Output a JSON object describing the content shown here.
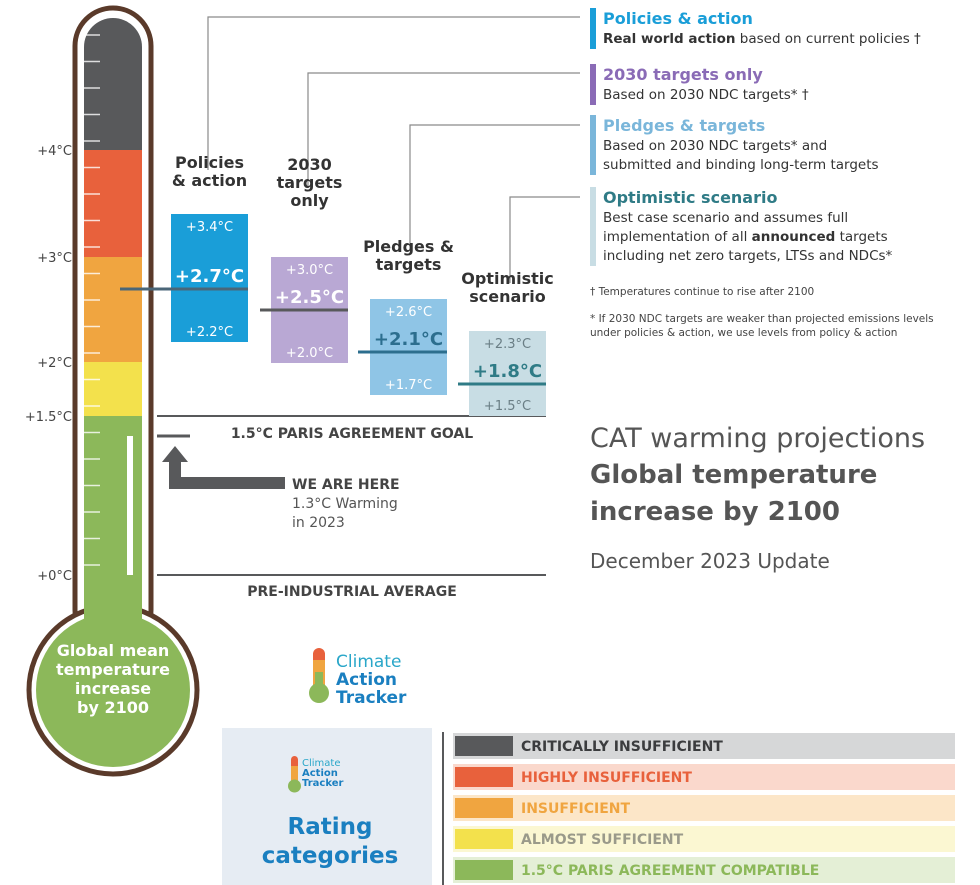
{
  "scale": {
    "ticks": [
      "+4°C",
      "+3°C",
      "+2°C",
      "+1.5°C",
      "+0°C"
    ]
  },
  "bulb": {
    "lines": [
      "Global mean",
      "temperature",
      "increase",
      "by 2100"
    ]
  },
  "scenarios": [
    {
      "label": [
        "Policies",
        "& action"
      ],
      "high": "+3.4°C",
      "mid": "+2.7°C",
      "low": "+2.2°C"
    },
    {
      "label": [
        "2030",
        "targets",
        "only"
      ],
      "high": "+3.0°C",
      "mid": "+2.5°C",
      "low": "+2.0°C"
    },
    {
      "label": [
        "Pledges &",
        "targets"
      ],
      "high": "+2.6°C",
      "mid": "+2.1°C",
      "low": "+1.7°C"
    },
    {
      "label": [
        "Optimistic",
        "scenario"
      ],
      "high": "+2.3°C",
      "mid": "+1.8°C",
      "low": "+1.5°C"
    }
  ],
  "legend": [
    {
      "title": "Policies & action",
      "lines": [
        [
          {
            "text": "Real world action",
            "bold": true
          },
          {
            "text": " based on current policies †",
            "bold": false
          }
        ]
      ]
    },
    {
      "title": "2030 targets only",
      "lines": [
        [
          {
            "text": "Based on 2030 NDC targets* †",
            "bold": false
          }
        ]
      ]
    },
    {
      "title": "Pledges & targets",
      "lines": [
        [
          {
            "text": "Based on 2030 NDC targets* and",
            "bold": false
          }
        ],
        [
          {
            "text": "submitted and binding long-term targets",
            "bold": false
          }
        ]
      ]
    },
    {
      "title": "Optimistic scenario",
      "lines": [
        [
          {
            "text": "Best case scenario and assumes full",
            "bold": false
          }
        ],
        [
          {
            "text": "implementation of all ",
            "bold": false
          },
          {
            "text": "announced",
            "bold": true
          },
          {
            "text": " targets",
            "bold": false
          }
        ],
        [
          {
            "text": "including net zero targets, LTSs and NDCs*",
            "bold": false
          }
        ]
      ]
    }
  ],
  "notes": [
    [
      "† Temperatures continue to rise after 2100"
    ],
    [
      "* If 2030 NDC targets are weaker than projected emissions levels",
      "under policies & action, we use levels from policy & action"
    ]
  ],
  "goal_line": "1.5°C PARIS AGREEMENT GOAL",
  "baseline": "PRE-INDUSTRIAL AVERAGE",
  "we_are_here": {
    "title": "WE ARE HERE",
    "lines": [
      "1.3°C Warming",
      "in 2023"
    ]
  },
  "header": {
    "subtitle": "CAT warming projections",
    "title": [
      "Global temperature",
      "increase by 2100"
    ],
    "update": "December 2023 Update"
  },
  "logo": [
    "Climate",
    "Action",
    "Tracker"
  ],
  "rating": {
    "title": [
      "Rating",
      "categories"
    ],
    "categories": [
      "CRITICALLY INSUFFICIENT",
      "HIGHLY INSUFFICIENT",
      "INSUFFICIENT",
      "ALMOST SUFFICIENT",
      "1.5°C PARIS AGREEMENT COMPATIBLE"
    ]
  }
}
